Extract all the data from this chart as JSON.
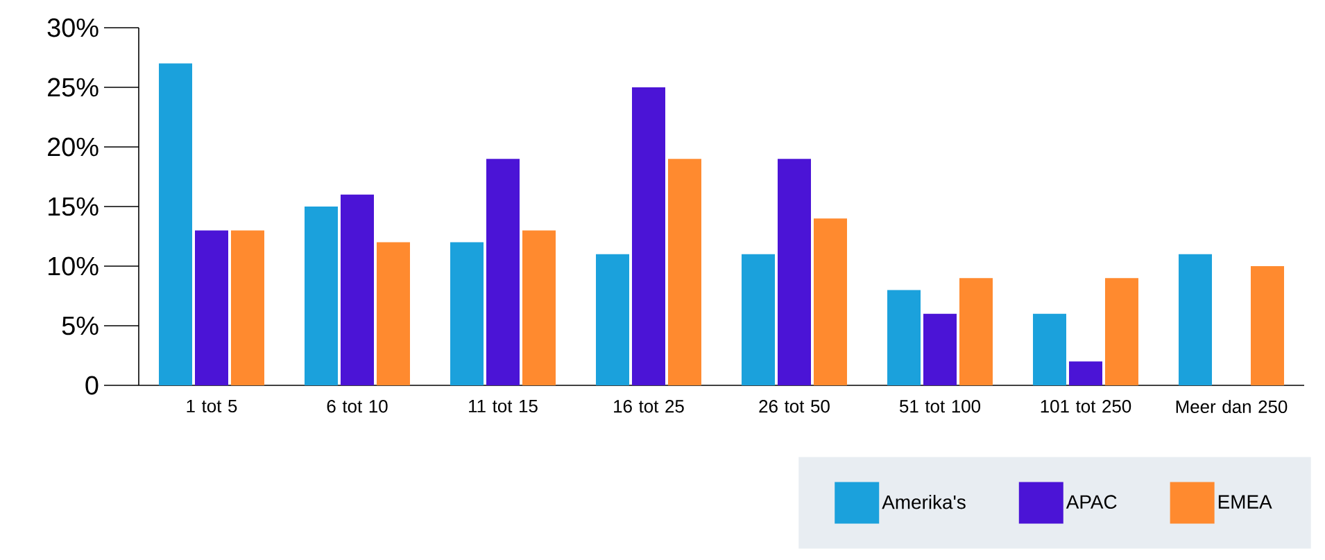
{
  "chart_data": {
    "type": "bar",
    "categories": [
      "1 tot 5",
      "6 tot 10",
      "11 tot 15",
      "16 tot 25",
      "26 tot 50",
      "51 tot 100",
      "101 tot 250",
      "Meer dan 250"
    ],
    "series": [
      {
        "name": "Amerika's",
        "color": "#1ba1dc",
        "values": [
          27,
          15,
          12,
          11,
          11,
          8,
          6,
          11
        ]
      },
      {
        "name": "APAC",
        "color": "#4b14d6",
        "values": [
          13,
          16,
          19,
          25,
          19,
          6,
          2,
          0
        ]
      },
      {
        "name": "EMEA",
        "color": "#ff8a2f",
        "values": [
          13,
          12,
          13,
          19,
          14,
          9,
          9,
          10
        ]
      }
    ],
    "ylim": [
      0,
      30
    ],
    "yticks": [
      0,
      {
        "value": 5,
        "label": "5%"
      },
      {
        "value": 10,
        "label": "10%"
      },
      {
        "value": 15,
        "label": "15%"
      },
      {
        "value": 20,
        "label": "20%"
      },
      {
        "value": 25,
        "label": "25%"
      },
      {
        "value": 30,
        "label": "30%"
      }
    ],
    "grid": false,
    "legend": "bottom right"
  }
}
